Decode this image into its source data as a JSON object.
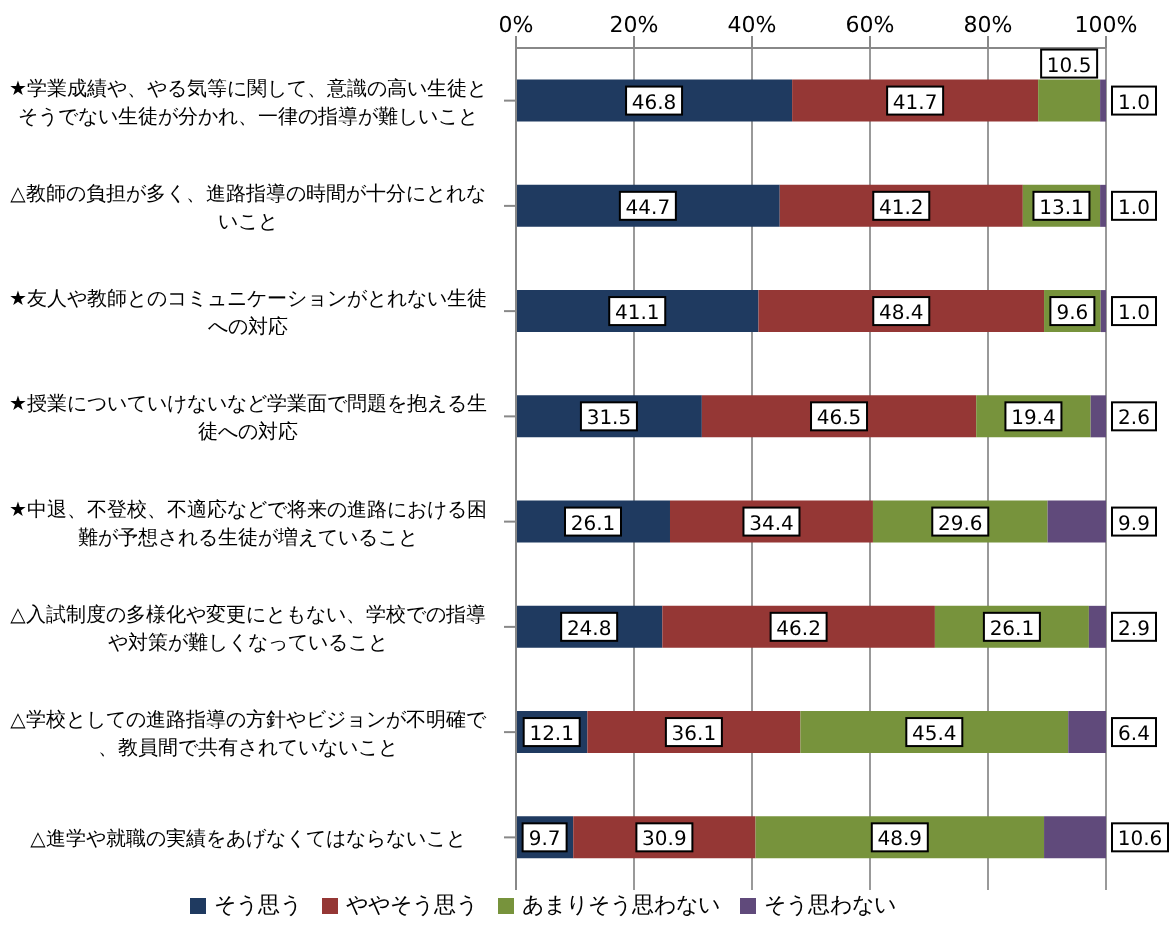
{
  "chart_data": {
    "type": "bar",
    "orientation": "horizontal",
    "stacked": true,
    "categories": [
      "★学業成績や、やる気等に関して、意識の高い生徒とそうでない生徒が分かれ、一律の指導が難しいこと",
      "△教師の負担が多く、進路指導の時間が十分にとれないこと",
      "★友人や教師とのコミュニケーションがとれない生徒への対応",
      "★授業についていけないなど学業面で問題を抱える生徒への対応",
      "★中退、不登校、不適応などで将来の進路における困難が予想される生徒が増えていること",
      "△入試制度の多様化や変更にともない、学校での指導や対策が難しくなっていること",
      "△学校としての進路指導の方針やビジョンが不明確で、教員間で共有されていないこと",
      "△進学や就職の実績をあげなくてはならないこと"
    ],
    "series": [
      {
        "name": "そう思う",
        "color": "#1f3a60",
        "values": [
          46.8,
          44.7,
          41.1,
          31.5,
          26.1,
          24.8,
          12.1,
          9.7
        ],
        "value_labels": [
          "46.8",
          "44.7",
          "41.1",
          "31.5",
          "26.1",
          "24.8",
          "12.1",
          "9.7"
        ]
      },
      {
        "name": "ややそう思う",
        "color": "#953735",
        "values": [
          41.7,
          41.2,
          48.4,
          46.5,
          34.4,
          46.2,
          36.1,
          30.9
        ],
        "value_labels": [
          "41.7",
          "41.2",
          "48.4",
          "46.5",
          "34.4",
          "46.2",
          "36.1",
          "30.9"
        ]
      },
      {
        "name": "あまりそう思わない",
        "color": "#77933c",
        "values": [
          10.5,
          13.1,
          9.6,
          19.4,
          29.6,
          26.1,
          45.4,
          48.9
        ],
        "value_labels": [
          "10.5",
          "13.1",
          "9.6",
          "19.4",
          "29.6",
          "26.1",
          "45.4",
          "48.9"
        ]
      },
      {
        "name": "そう思わない",
        "color": "#604a7b",
        "values": [
          1.0,
          1.0,
          1.0,
          2.6,
          9.9,
          2.9,
          6.4,
          10.6
        ],
        "value_labels": [
          "1.0",
          "1.0",
          "1.0",
          "2.6",
          "9.9",
          "2.9",
          "6.4",
          "10.6"
        ]
      }
    ],
    "xlim": [
      0,
      100
    ],
    "xticks": [
      {
        "value": 0,
        "label": "0%"
      },
      {
        "value": 20,
        "label": "20%"
      },
      {
        "value": 40,
        "label": "40%"
      },
      {
        "value": 60,
        "label": "60%"
      },
      {
        "value": 80,
        "label": "80%"
      },
      {
        "value": 100,
        "label": "100%"
      }
    ],
    "grid": "x",
    "legend": "bottom"
  }
}
